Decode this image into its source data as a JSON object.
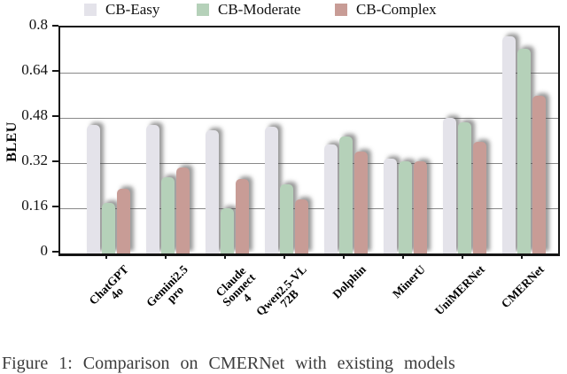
{
  "figure": {
    "ylabel": "BLEU",
    "caption": "Figure 1: Comparison on CMERNet with existing models"
  },
  "legend": [
    {
      "label": "CB-Easy",
      "color": "#e4e3ea"
    },
    {
      "label": "CB-Moderate",
      "color": "#b5d1b9"
    },
    {
      "label": "CB-Complex",
      "color": "#c89c96"
    }
  ],
  "chart_data": {
    "type": "bar",
    "title": "",
    "xlabel": "",
    "ylabel": "BLEU",
    "ylim": [
      0,
      0.8
    ],
    "yticks": [
      "0",
      "0.16",
      "0.32",
      "0.48",
      "0.64",
      "0.8"
    ],
    "ytick_values": [
      0,
      0.16,
      0.32,
      0.48,
      0.64,
      0.8
    ],
    "grid": true,
    "legend_position": "top",
    "categories": [
      "ChatGPT\n4o",
      "Gemini2.5\npro",
      "Claude\nSonnect\n4",
      "Qwen2.5-VL\n72B",
      "Dolphin",
      "MinerU",
      "UniMERNet",
      "CMERNet"
    ],
    "series": [
      {
        "name": "CB-Easy",
        "color": "#e4e3ea",
        "values": [
          0.455,
          0.455,
          0.435,
          0.45,
          0.385,
          0.335,
          0.48,
          0.77
        ]
      },
      {
        "name": "CB-Moderate",
        "color": "#b5d1b9",
        "values": [
          0.18,
          0.27,
          0.16,
          0.245,
          0.415,
          0.325,
          0.465,
          0.725
        ]
      },
      {
        "name": "CB-Complex",
        "color": "#c89c96",
        "values": [
          0.23,
          0.305,
          0.265,
          0.19,
          0.36,
          0.325,
          0.395,
          0.56
        ]
      }
    ]
  }
}
